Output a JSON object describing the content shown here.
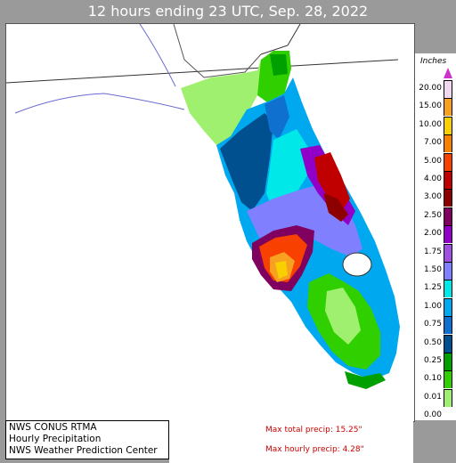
{
  "title": "12 hours ending 23 UTC, Sep. 28, 2022",
  "legend": {
    "units": "Inches",
    "bins": [
      {
        "label": "20.00",
        "color": "#f0d8f0"
      },
      {
        "label": "15.00",
        "color": "#f8a020"
      },
      {
        "label": "10.00",
        "color": "#f8d000"
      },
      {
        "label": "7.00",
        "color": "#f88000"
      },
      {
        "label": "5.00",
        "color": "#f84000"
      },
      {
        "label": "4.00",
        "color": "#c00000"
      },
      {
        "label": "3.00",
        "color": "#8c0000"
      },
      {
        "label": "2.50",
        "color": "#800060"
      },
      {
        "label": "2.00",
        "color": "#9000c8"
      },
      {
        "label": "1.75",
        "color": "#a050e0"
      },
      {
        "label": "1.50",
        "color": "#8080ff"
      },
      {
        "label": "1.25",
        "color": "#00e8e8"
      },
      {
        "label": "1.00",
        "color": "#00a8f0"
      },
      {
        "label": "0.75",
        "color": "#1070d0"
      },
      {
        "label": "0.50",
        "color": "#005090"
      },
      {
        "label": "0.25",
        "color": "#00a000"
      },
      {
        "label": "0.10",
        "color": "#30d000"
      },
      {
        "label": "0.01",
        "color": "#a0f070"
      },
      {
        "label": "0.00",
        "color": "#ffffff"
      }
    ]
  },
  "info": {
    "line1": "NWS CONUS RTMA",
    "line2": "Hourly Precipitation",
    "line3": "NWS Weather Prediction Center"
  },
  "stats": {
    "max_total": "Max total precip: 15.25\"",
    "max_hourly": "Max hourly precip:  4.28\""
  }
}
